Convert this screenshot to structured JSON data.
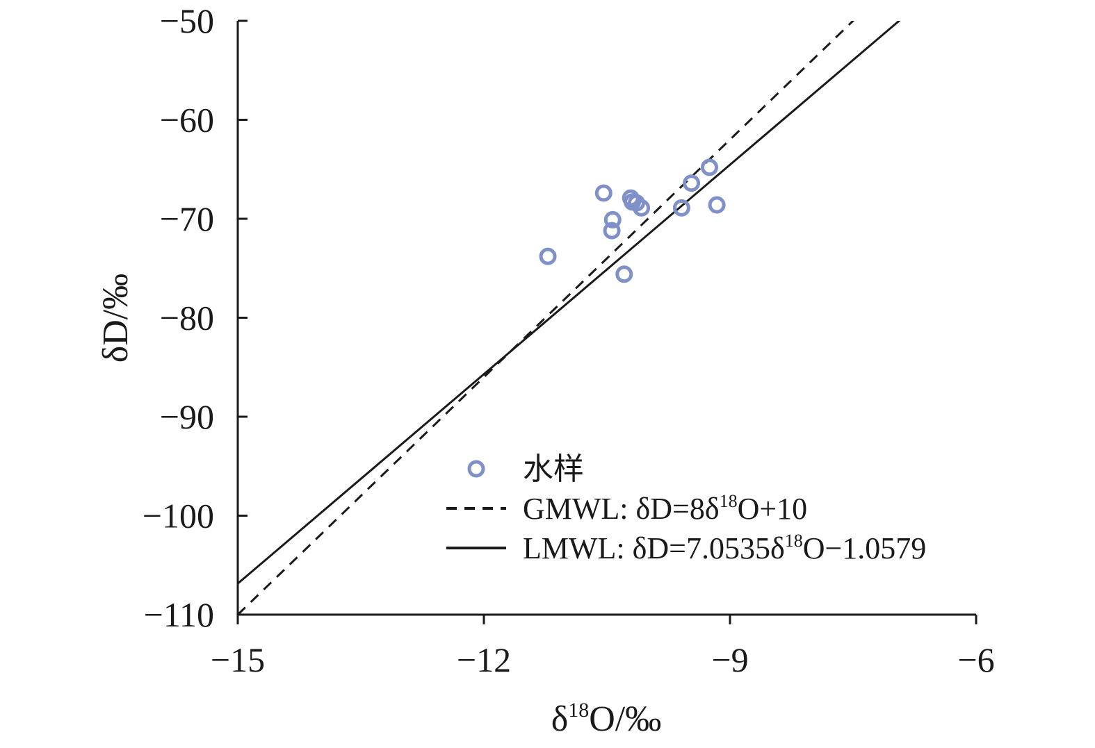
{
  "chart_data": {
    "type": "scatter",
    "xlabel": "δ18O/‰",
    "xlabel_parts": {
      "delta": "δ",
      "sup": "18",
      "rest": "O/‰"
    },
    "ylabel": "δD/‰",
    "xlim": [
      -15,
      -6
    ],
    "ylim": [
      -110,
      -50
    ],
    "x_ticks": [
      -15,
      -12,
      -9,
      -6
    ],
    "x_tick_labels": [
      "−15",
      "−12",
      "−9",
      "−6"
    ],
    "y_ticks": [
      -50,
      -60,
      -70,
      -80,
      -90,
      -100,
      -110
    ],
    "y_tick_labels": [
      "−50",
      "−60",
      "−70",
      "−80",
      "−90",
      "−100",
      "−110"
    ],
    "grid": false,
    "legend_position": "lower-right",
    "series": [
      {
        "name": "水样",
        "kind": "scatter",
        "color": "#8090c8",
        "points": [
          {
            "x": -11.22,
            "y": -73.8
          },
          {
            "x": -10.54,
            "y": -67.4
          },
          {
            "x": -10.43,
            "y": -70.1
          },
          {
            "x": -10.44,
            "y": -71.2
          },
          {
            "x": -10.29,
            "y": -75.6
          },
          {
            "x": -10.21,
            "y": -67.9
          },
          {
            "x": -10.19,
            "y": -68.3
          },
          {
            "x": -10.14,
            "y": -68.4
          },
          {
            "x": -10.08,
            "y": -68.9
          },
          {
            "x": -9.59,
            "y": -68.9
          },
          {
            "x": -9.47,
            "y": -66.4
          },
          {
            "x": -9.25,
            "y": -64.8
          },
          {
            "x": -9.16,
            "y": -68.6
          }
        ]
      },
      {
        "name": "GMWL: δD=8δ18O+10",
        "legend_parts": {
          "pre": "GMWL: δD=8δ",
          "sup": "18",
          "post": "O+10"
        },
        "kind": "line",
        "style": "dashed",
        "color": "#1a1a1a",
        "slope": 8,
        "intercept": 10
      },
      {
        "name": "LMWL: δD=7.0535δ18O−1.0579",
        "legend_parts": {
          "pre": "LMWL: δD=7.0535δ",
          "sup": "18",
          "post": "O−1.0579"
        },
        "kind": "line",
        "style": "solid",
        "color": "#1a1a1a",
        "slope": 7.0535,
        "intercept": -1.0579
      }
    ]
  }
}
